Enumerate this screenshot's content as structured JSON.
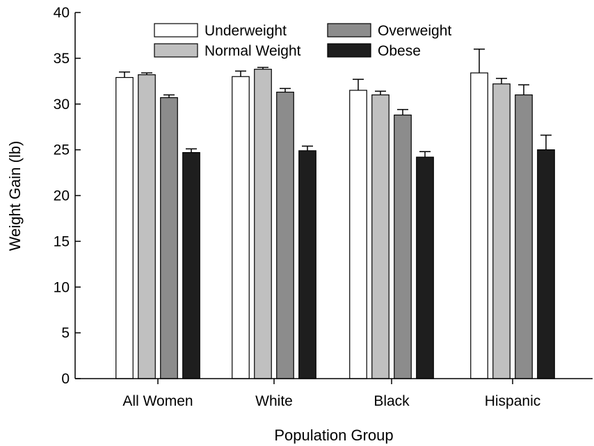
{
  "chart_data": {
    "type": "bar",
    "title": "",
    "xlabel": "Population Group",
    "ylabel": "Weight Gain (lb)",
    "ylim": [
      0,
      40
    ],
    "yticks": [
      0,
      5,
      10,
      15,
      20,
      25,
      30,
      35,
      40
    ],
    "categories": [
      "All Women",
      "White",
      "Black",
      "Hispanic"
    ],
    "series": [
      {
        "name": "Underweight",
        "color": "#ffffff",
        "values": [
          32.9,
          33.0,
          31.5,
          33.4
        ],
        "errors": [
          0.6,
          0.6,
          1.2,
          2.6
        ]
      },
      {
        "name": "Normal Weight",
        "color": "#c0c0c0",
        "values": [
          33.2,
          33.8,
          31.0,
          32.2
        ],
        "errors": [
          0.2,
          0.2,
          0.4,
          0.6
        ]
      },
      {
        "name": "Overweight",
        "color": "#8c8c8c",
        "values": [
          30.7,
          31.3,
          28.8,
          31.0
        ],
        "errors": [
          0.3,
          0.4,
          0.6,
          1.1
        ]
      },
      {
        "name": "Obese",
        "color": "#1e1e1e",
        "values": [
          24.7,
          24.9,
          24.2,
          25.0
        ],
        "errors": [
          0.4,
          0.5,
          0.6,
          1.6
        ]
      }
    ],
    "legend": {
      "placement": "top-center",
      "columns": 2
    },
    "grid": false,
    "error_bars": "upper"
  }
}
